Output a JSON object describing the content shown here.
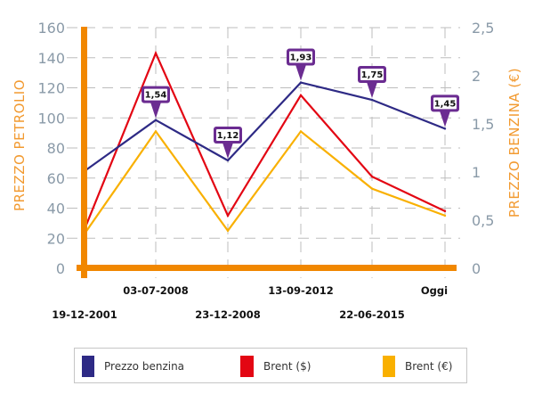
{
  "chart_data": {
    "type": "line",
    "title": "",
    "categories": [
      "19-12-2001",
      "03-07-2008",
      "23-12-2008",
      "13-09-2012",
      "22-06-2015",
      "Oggi"
    ],
    "category_rows": [
      "lower",
      "upper",
      "lower",
      "upper",
      "lower",
      "upper"
    ],
    "ylabel_left": "PREZZO PETROLIO",
    "ylabel_right": "PREZZO BENZINA (€)",
    "ylim_left": [
      0,
      160
    ],
    "ylim_right": [
      0,
      2.5
    ],
    "yticks_left": [
      "0",
      "20",
      "40",
      "60",
      "80",
      "100",
      "120",
      "140",
      "160"
    ],
    "yticks_left_values": [
      0,
      20,
      40,
      60,
      80,
      100,
      120,
      140,
      160
    ],
    "yticks_right": [
      "0",
      "0,5",
      "1",
      "1,5",
      "2",
      "2,5"
    ],
    "yticks_right_values": [
      0,
      0.5,
      1,
      1.5,
      2,
      2.5
    ],
    "grid": true,
    "legend_position": "bottom",
    "series": [
      {
        "name": "Prezzo benzina",
        "axis": "right",
        "color": "#2e2a85",
        "values": [
          1.01,
          1.54,
          1.12,
          1.93,
          1.75,
          1.45
        ],
        "data_labels": [
          null,
          "1,54",
          "1,12",
          "1,93",
          "1,75",
          "1,45"
        ]
      },
      {
        "name": "Brent ($)",
        "axis": "left",
        "color": "#e30613",
        "values": [
          26,
          143,
          35,
          115,
          61,
          38
        ]
      },
      {
        "name": "Brent (€)",
        "axis": "left",
        "color": "#f9b000",
        "values": [
          23,
          91,
          25,
          91,
          53,
          35
        ]
      }
    ],
    "colors": {
      "axis": "#f18700",
      "grid": "#bdbdbd",
      "tooltip_border": "#6b2c91"
    }
  }
}
